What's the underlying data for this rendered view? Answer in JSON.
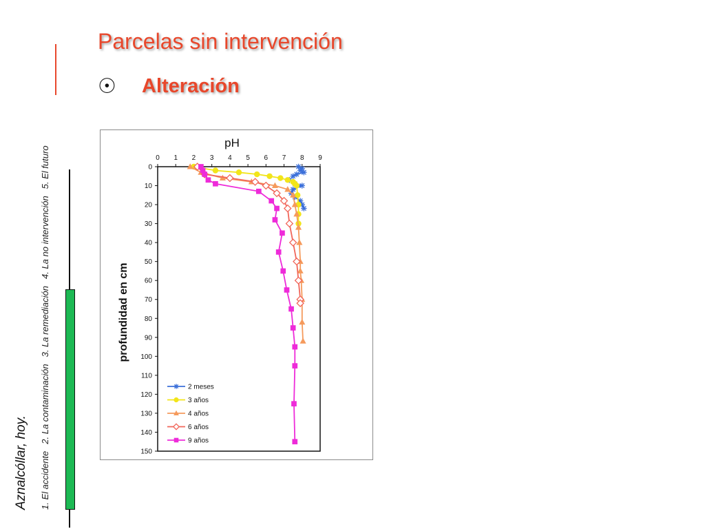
{
  "page": {
    "title": "Parcelas sin intervención",
    "bullet": "Alteración",
    "bullet_glyph": "☉"
  },
  "sidebar": {
    "title": "Aznalcóllar, hoy.",
    "items": [
      {
        "label": "1. El accidente"
      },
      {
        "label": "2. La contaminación"
      },
      {
        "label": "3. La remediación"
      },
      {
        "label": "4. La no intervención"
      },
      {
        "label": "5. El futuro"
      }
    ],
    "active_color": "#1db954",
    "accent_color": "#e8472b"
  },
  "chart_data": {
    "type": "line",
    "title": "pH",
    "xlabel": "",
    "ylabel": "profundidad en cm",
    "xlim": [
      0,
      9
    ],
    "ylim": [
      0,
      150
    ],
    "y_inverted": true,
    "x_axis_position": "top",
    "x_ticks": [
      0,
      1,
      2,
      3,
      4,
      5,
      6,
      7,
      8,
      9
    ],
    "y_ticks": [
      0,
      10,
      20,
      30,
      40,
      50,
      60,
      70,
      80,
      90,
      100,
      110,
      120,
      130,
      140,
      150
    ],
    "legend_position": "bottom-left",
    "series": [
      {
        "name": "2 meses",
        "color": "#3b6fd9",
        "marker": "star",
        "x": [
          7.8,
          8.0,
          7.9,
          8.1,
          7.7,
          7.5,
          7.3,
          7.6,
          8.0,
          7.5,
          7.4,
          7.6,
          7.9,
          8.0,
          8.1
        ],
        "y": [
          0,
          1,
          2,
          3,
          4,
          5,
          7,
          9,
          10,
          12,
          14,
          16,
          18,
          20,
          22
        ]
      },
      {
        "name": "3 años",
        "color": "#f2e51a",
        "marker": "circle",
        "x": [
          2.0,
          3.2,
          4.5,
          5.5,
          6.2,
          6.8,
          7.2,
          7.5,
          7.6,
          7.7,
          7.75,
          7.8,
          7.8,
          7.8
        ],
        "y": [
          0,
          2,
          3,
          4,
          5,
          6,
          7,
          8,
          9,
          10,
          15,
          20,
          25,
          30
        ]
      },
      {
        "name": "4 años",
        "color": "#f59a5c",
        "marker": "triangle",
        "x": [
          1.8,
          2.4,
          3.6,
          5.2,
          6.5,
          7.2,
          7.5,
          7.6,
          7.7,
          7.8,
          7.85,
          7.9,
          7.9,
          7.95,
          8.0,
          8.0,
          8.05
        ],
        "y": [
          0,
          3,
          6,
          8,
          10,
          12,
          15,
          20,
          25,
          32,
          40,
          50,
          55,
          60,
          70,
          82,
          92
        ]
      },
      {
        "name": "6 años",
        "color": "#f1665a",
        "marker": "diamond-open",
        "x": [
          2.2,
          2.6,
          4.0,
          5.4,
          6.0,
          6.6,
          7.0,
          7.2,
          7.3,
          7.5,
          7.7,
          7.8,
          7.9,
          7.9
        ],
        "y": [
          0,
          4,
          6,
          8,
          10,
          14,
          18,
          22,
          30,
          40,
          50,
          60,
          70,
          72
        ]
      },
      {
        "name": "9 años",
        "color": "#ee2bd9",
        "marker": "square",
        "x": [
          2.4,
          2.5,
          2.6,
          2.8,
          3.2,
          5.6,
          6.3,
          6.6,
          6.5,
          6.9,
          6.7,
          6.95,
          7.15,
          7.4,
          7.5,
          7.6,
          7.6,
          7.55,
          7.6
        ],
        "y": [
          0,
          2,
          4,
          7,
          9,
          13,
          18,
          22,
          28,
          35,
          45,
          55,
          65,
          75,
          85,
          95,
          105,
          125,
          145
        ]
      }
    ]
  }
}
